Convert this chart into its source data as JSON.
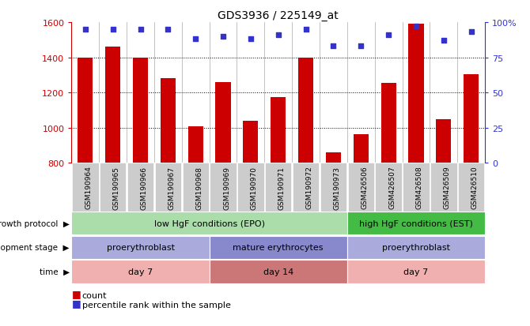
{
  "title": "GDS3936 / 225149_at",
  "samples": [
    "GSM190964",
    "GSM190965",
    "GSM190966",
    "GSM190967",
    "GSM190968",
    "GSM190969",
    "GSM190970",
    "GSM190971",
    "GSM190972",
    "GSM190973",
    "GSM426506",
    "GSM426507",
    "GSM426508",
    "GSM426509",
    "GSM426510"
  ],
  "counts": [
    1400,
    1460,
    1400,
    1280,
    1010,
    1260,
    1040,
    1175,
    1400,
    860,
    965,
    1255,
    1590,
    1050,
    1305
  ],
  "percentiles": [
    95,
    95,
    95,
    95,
    88,
    90,
    88,
    91,
    95,
    83,
    83,
    91,
    97,
    87,
    93
  ],
  "bar_color": "#cc0000",
  "dot_color": "#3333cc",
  "ylim_left": [
    800,
    1600
  ],
  "ylim_right": [
    0,
    100
  ],
  "yticks_left": [
    800,
    1000,
    1200,
    1400,
    1600
  ],
  "yticks_right": [
    0,
    25,
    50,
    75,
    100
  ],
  "grid_values": [
    1000,
    1200,
    1400
  ],
  "annotation_rows": [
    {
      "label": "growth protocol",
      "segments": [
        {
          "span": [
            0,
            9
          ],
          "text": "low HgF conditions (EPO)",
          "color": "#aaddaa",
          "text_color": "#000000"
        },
        {
          "span": [
            10,
            14
          ],
          "text": "high HgF conditions (EST)",
          "color": "#44bb44",
          "text_color": "#000000"
        }
      ]
    },
    {
      "label": "development stage",
      "segments": [
        {
          "span": [
            0,
            4
          ],
          "text": "proerythroblast",
          "color": "#aaaadd",
          "text_color": "#000000"
        },
        {
          "span": [
            5,
            9
          ],
          "text": "mature erythrocytes",
          "color": "#8888cc",
          "text_color": "#000000"
        },
        {
          "span": [
            10,
            14
          ],
          "text": "proerythroblast",
          "color": "#aaaadd",
          "text_color": "#000000"
        }
      ]
    },
    {
      "label": "time",
      "segments": [
        {
          "span": [
            0,
            4
          ],
          "text": "day 7",
          "color": "#f0b0b0",
          "text_color": "#000000"
        },
        {
          "span": [
            5,
            9
          ],
          "text": "day 14",
          "color": "#cc7777",
          "text_color": "#000000"
        },
        {
          "span": [
            10,
            14
          ],
          "text": "day 7",
          "color": "#f0b0b0",
          "text_color": "#000000"
        }
      ]
    }
  ],
  "bg_color": "#ffffff",
  "tick_bg_color": "#cccccc",
  "col_sep_color": "#aaaaaa"
}
